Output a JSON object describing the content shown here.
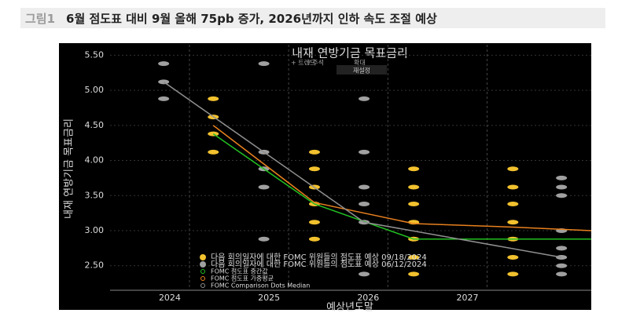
{
  "header": {
    "label": "그림1",
    "title": "6월 점도표 대비 9월 올해 75pb 증가, 2026년까지 인하 속도 조절 예상"
  },
  "toolbar": {
    "items": [
      "+ 트렌드",
      "/ 주석",
      "확대"
    ],
    "reset": "재설정"
  },
  "chart_data": {
    "type": "scatter",
    "title": "내재 연방기금 목표금리",
    "y_label": "내재 연방기금 목표금리",
    "x_label": "예상년도말",
    "xlim": [
      2023.2,
      2028.05
    ],
    "xticks": [
      2024,
      2025,
      2026,
      2027
    ],
    "ylim": [
      2.15,
      5.65
    ],
    "yticks": [
      {
        "value": 2.5,
        "label": "2.50"
      },
      {
        "value": 3,
        "label": "3.00"
      },
      {
        "value": 3.5,
        "label": "3.50"
      },
      {
        "value": 4,
        "label": "4.00"
      },
      {
        "value": 4.5,
        "label": "4.50"
      },
      {
        "value": 5,
        "label": "5.00"
      },
      {
        "value": 5.5,
        "label": "5.50"
      }
    ],
    "grid": true,
    "series": [
      {
        "name": "다음 회의일자에 대한 FOMC 위원들의 점도표 예상 09/18/2024",
        "type": "scatter",
        "color": "#f2c12e",
        "x": [
          2024.24,
          2024.24,
          2024.24,
          2024.24,
          2025.26,
          2025.26,
          2025.26,
          2025.26,
          2025.26,
          2025.26,
          2026.26,
          2026.26,
          2026.26,
          2026.26,
          2026.26,
          2026.26,
          2026.26,
          2027.26,
          2027.26,
          2027.26,
          2027.26,
          2027.26,
          2027.26,
          2027.26
        ],
        "values": [
          4.88,
          4.62,
          4.38,
          4.12,
          4.12,
          3.88,
          3.62,
          3.38,
          3.12,
          2.88,
          3.88,
          3.62,
          3.38,
          3.12,
          2.88,
          2.62,
          2.38,
          3.88,
          3.62,
          3.38,
          3.12,
          2.88,
          2.62,
          2.38
        ]
      },
      {
        "name": "다음 회의일자에 대한 FOMC 위원들의 점도표 예상 06/12/2024",
        "type": "scatter",
        "color": "#a0a0a0",
        "x": [
          2023.74,
          2023.74,
          2023.74,
          2024.75,
          2024.75,
          2024.75,
          2024.75,
          2024.75,
          2025.76,
          2025.76,
          2025.76,
          2025.76,
          2025.76,
          2025.76,
          2027.75,
          2027.75,
          2027.75,
          2027.75,
          2027.75,
          2027.75,
          2027.75,
          2027.75
        ],
        "values": [
          5.38,
          5.12,
          4.88,
          5.38,
          4.12,
          3.88,
          3.62,
          2.88,
          4.88,
          4.12,
          3.62,
          3.38,
          3.12,
          2.38,
          3.75,
          3.62,
          3.5,
          3,
          2.75,
          2.62,
          2.5,
          2.38
        ]
      },
      {
        "name": "FOMC 점도표 중간값",
        "type": "line",
        "color": "#22c022",
        "x": [
          2024.24,
          2025.26,
          2026.26,
          2027.26,
          2028.05
        ],
        "values": [
          4.38,
          3.38,
          2.88,
          2.88,
          2.88
        ]
      },
      {
        "name": "FOMC 점도표 가중평균",
        "type": "line",
        "color": "#e8801e",
        "x": [
          2024.24,
          2025.26,
          2026.26,
          2027.26,
          2028.05
        ],
        "values": [
          4.5,
          3.4,
          3.1,
          3.05,
          3
        ]
      },
      {
        "name": "FOMC Comparison Dots Median",
        "type": "line",
        "color": "#909090",
        "x": [
          2023.74,
          2024.75,
          2025.76,
          2027.75
        ],
        "values": [
          5.12,
          4.12,
          3.12,
          2.62
        ]
      }
    ]
  }
}
